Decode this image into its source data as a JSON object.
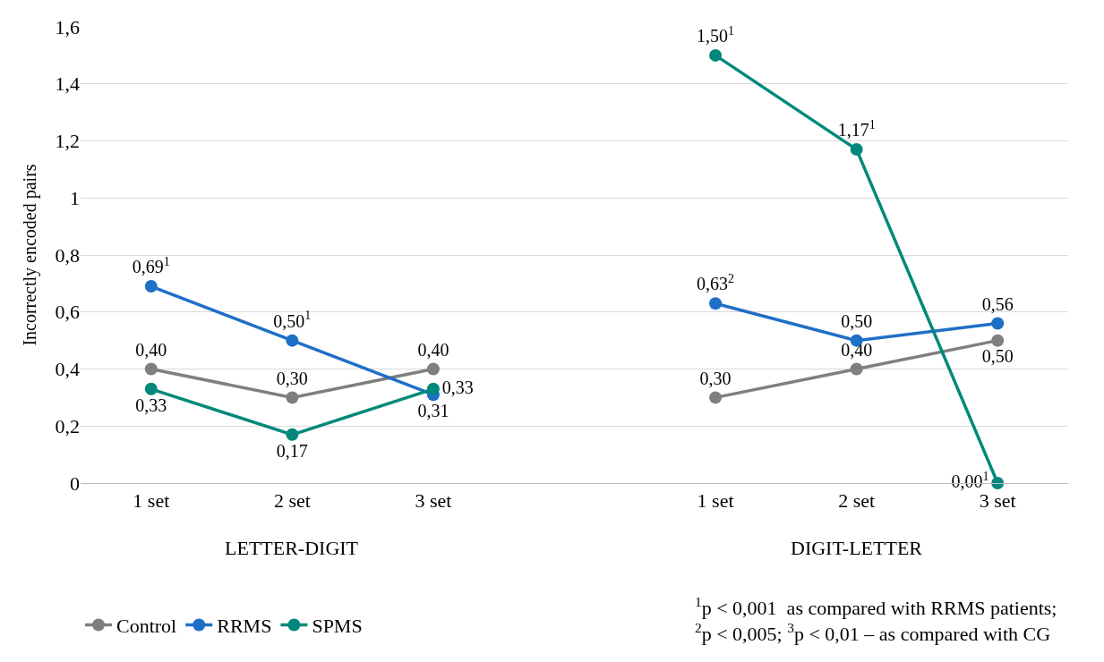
{
  "chart_data": {
    "type": "line",
    "ylabel": "Incorrectly encoded pairs",
    "categories": [
      "1 set",
      "2 set",
      "3 set",
      null,
      "1 set",
      "2 set",
      "3 set"
    ],
    "series": [
      {
        "name": "Control",
        "color": "#7f7f7f",
        "values": [
          0.4,
          0.3,
          0.4,
          null,
          0.3,
          0.4,
          0.5
        ],
        "value_labels": [
          "0,40",
          "0,30",
          "0,40",
          null,
          "0,30",
          "0,40",
          "0,50"
        ]
      },
      {
        "name": "RRMS",
        "color": "#1f6fc6",
        "values": [
          0.69,
          0.5,
          0.31,
          null,
          0.63,
          0.5,
          0.56
        ],
        "value_labels": [
          "0,69$^{1}$",
          "0,50$^{1}$",
          "0,31",
          null,
          "0,63$^{2}$",
          "0,50",
          "0,56"
        ]
      },
      {
        "name": "SPMS",
        "color": "#00897b",
        "values": [
          0.33,
          0.17,
          0.33,
          null,
          1.5,
          1.17,
          0.0
        ],
        "value_labels": [
          "0,33",
          "0,17",
          "0,33",
          null,
          "1,50$^{1}$",
          "1,17$^{1}$",
          "0,00$^{1}$"
        ]
      }
    ],
    "ylim": [
      0,
      1.6
    ],
    "yticks": [
      0,
      {
        "value": 0.2,
        "label": "0,2"
      },
      {
        "value": 0.4,
        "label": "0,4"
      },
      {
        "value": 0.6,
        "label": "0,6"
      },
      {
        "value": 0.8,
        "label": "0,8"
      },
      1,
      {
        "value": 1.2,
        "label": "1,2"
      },
      {
        "value": 1.4,
        "label": "1,4"
      },
      {
        "value": 1.6,
        "label": "1,6"
      }
    ],
    "annotations": [
      "LETTER-DIGIT",
      "DIGIT-LETTER",
      "$^{1}$p < 0,001  as compared with RRMS patients;\n$^{2}$p < 0,005; $^{3}$p < 0,01 – as compared with CG"
    ],
    "grid": "y",
    "legend": "bottom",
    "marker": "circle",
    "line_style": "solid"
  }
}
